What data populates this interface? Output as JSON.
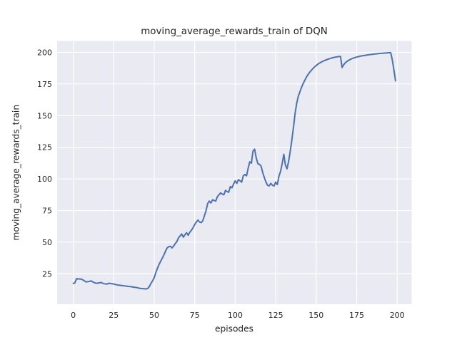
{
  "chart_data": {
    "type": "line",
    "title": "moving_average_rewards_train of DQN",
    "xlabel": "episodes",
    "ylabel": "moving_average_rewards_train",
    "grid": true,
    "legend_position": "none",
    "xticks": [
      0,
      25,
      50,
      75,
      100,
      125,
      150,
      175,
      200
    ],
    "yticks": [
      25,
      50,
      75,
      100,
      125,
      150,
      175,
      200
    ],
    "xlim": [
      -9.95,
      208.95
    ],
    "ylim": [
      1,
      209
    ],
    "series": [
      {
        "name": "moving_average_rewards_train",
        "x_start": 0,
        "x_step": 1,
        "values": [
          17.5,
          17.8,
          21.2,
          21.0,
          21.0,
          20.8,
          20.2,
          19.4,
          18.6,
          18.9,
          19.0,
          19.5,
          18.7,
          18.0,
          17.7,
          17.6,
          17.9,
          18.2,
          17.7,
          17.3,
          17.0,
          17.0,
          17.6,
          17.4,
          17.2,
          17.0,
          16.6,
          16.3,
          16.1,
          16.0,
          15.8,
          15.6,
          15.4,
          15.3,
          15.1,
          15.0,
          14.8,
          14.6,
          14.4,
          14.2,
          13.9,
          13.6,
          13.4,
          13.3,
          13.2,
          13.1,
          13.5,
          15.0,
          17.5,
          19.5,
          22.0,
          26.0,
          29.5,
          32.5,
          35.0,
          37.5,
          40.0,
          43.0,
          45.5,
          46.5,
          46.8,
          45.5,
          47.0,
          49.0,
          50.5,
          53.5,
          55.0,
          56.5,
          54.0,
          56.0,
          57.5,
          55.5,
          58.0,
          59.5,
          61.5,
          64.0,
          66.0,
          67.5,
          66.0,
          65.5,
          67.0,
          71.0,
          75.0,
          80.5,
          82.5,
          81.0,
          83.5,
          83.0,
          82.5,
          86.0,
          87.5,
          89.0,
          88.0,
          87.5,
          91.0,
          90.0,
          89.5,
          94.0,
          93.0,
          96.0,
          98.5,
          96.5,
          99.5,
          98.5,
          97.5,
          102.5,
          103.5,
          102.5,
          108.5,
          113.5,
          112.5,
          122.0,
          123.5,
          116.5,
          112.0,
          111.5,
          110.0,
          105.0,
          101.0,
          97.5,
          95.0,
          94.5,
          96.5,
          95.0,
          94.5,
          97.5,
          95.5,
          102.0,
          106.0,
          112.0,
          119.5,
          111.0,
          108.0,
          114.0,
          122.0,
          131.0,
          141.0,
          152.0,
          160.0,
          165.5,
          169.0,
          172.5,
          175.5,
          178.0,
          180.5,
          182.5,
          184.3,
          185.8,
          187.2,
          188.5,
          189.6,
          190.6,
          191.5,
          192.2,
          192.9,
          193.5,
          194.0,
          194.5,
          194.9,
          195.3,
          195.7,
          196.0,
          196.3,
          196.5,
          196.7,
          196.8,
          188.0,
          190.3,
          191.8,
          192.9,
          193.7,
          194.4,
          195.0,
          195.5,
          195.9,
          196.3,
          196.6,
          196.9,
          197.2,
          197.4,
          197.6,
          197.8,
          198.0,
          198.2,
          198.4,
          198.5,
          198.7,
          198.8,
          199.0,
          199.1,
          199.2,
          199.3,
          199.4,
          199.5,
          199.6,
          199.7,
          199.8,
          194.0,
          186.0,
          177.5
        ]
      }
    ],
    "colors": {
      "line": "#4c72b0",
      "axes_background": "#eaeaf2",
      "grid": "#ffffff",
      "text": "#262626",
      "figure_background": "#ffffff"
    }
  }
}
